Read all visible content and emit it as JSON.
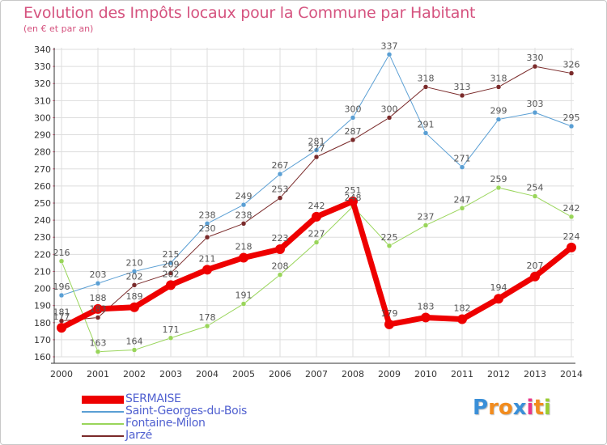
{
  "title": "Evolution des Impôts locaux pour la Commune par Habitant",
  "subtitle": "(en € et par an)",
  "logo": {
    "text": "Proxiti"
  },
  "chart_data": {
    "type": "line",
    "title": "Evolution des Impôts locaux pour la Commune par Habitant",
    "subtitle": "(en € et par an)",
    "categories": [
      "2000",
      "2001",
      "2002",
      "2003",
      "2004",
      "2005",
      "2006",
      "2007",
      "2008",
      "2009",
      "2010",
      "2011",
      "2012",
      "2013",
      "2014"
    ],
    "y_ticks": [
      "160",
      "170",
      "180",
      "190",
      "200",
      "210",
      "220",
      "230",
      "240",
      "250",
      "260",
      "270",
      "280",
      "290",
      "300",
      "310",
      "320",
      "330",
      "340"
    ],
    "ylim": [
      160,
      340
    ],
    "grid": true,
    "legend_position": "bottom-left",
    "series": [
      {
        "name": "SERMAISE",
        "color": "#ee0000",
        "width": 7,
        "values": [
          177,
          188,
          189,
          202,
          211,
          218,
          223,
          242,
          251,
          179,
          183,
          182,
          194,
          207,
          224
        ]
      },
      {
        "name": "Saint-Georges-du-Bois",
        "color": "#5a9fd4",
        "width": 1,
        "values": [
          196,
          203,
          210,
          215,
          238,
          249,
          267,
          281,
          300,
          337,
          291,
          271,
          299,
          303,
          295
        ]
      },
      {
        "name": "Fontaine-Milon",
        "color": "#99d55a",
        "width": 1,
        "values": [
          216,
          163,
          164,
          171,
          178,
          191,
          208,
          227,
          248,
          225,
          237,
          247,
          259,
          254,
          242
        ]
      },
      {
        "name": "Jarzé",
        "color": "#7a2a2a",
        "width": 1,
        "values": [
          181,
          183,
          202,
          209,
          230,
          238,
          253,
          277,
          287,
          300,
          318,
          313,
          318,
          330,
          326
        ]
      }
    ]
  }
}
